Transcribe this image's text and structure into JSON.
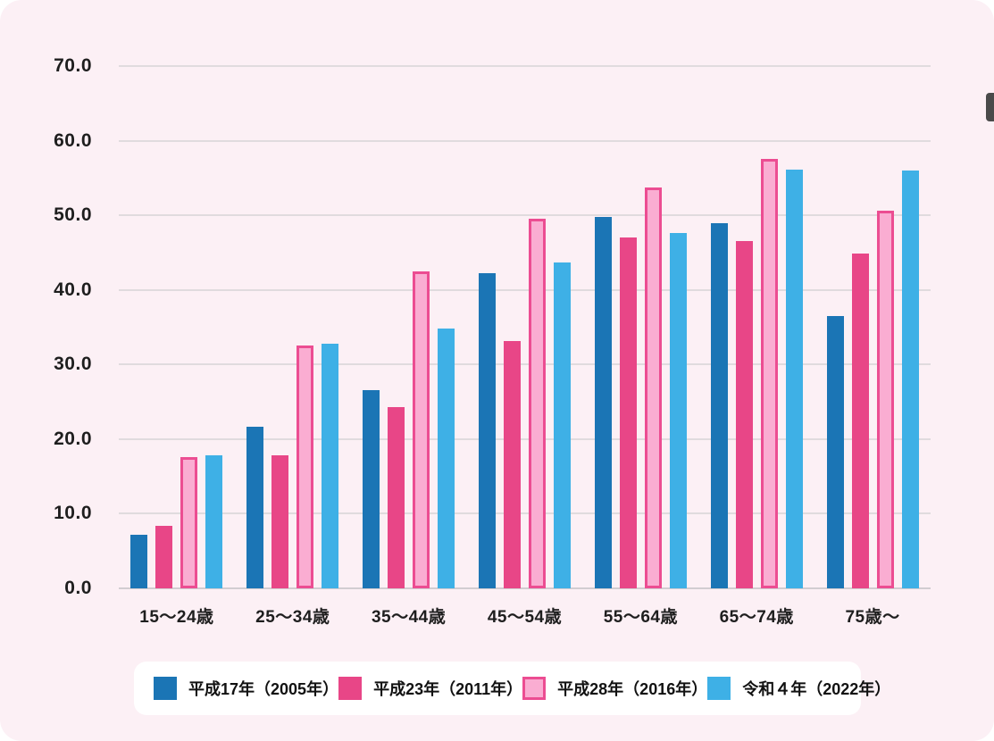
{
  "panel": {
    "background_color": "#fcf0f5",
    "gridline_color": "#e0dbde",
    "axisline_color": "#d2cdd1"
  },
  "chart_data": {
    "type": "bar",
    "title": "",
    "xlabel": "",
    "ylabel": "",
    "ylim": [
      0,
      70
    ],
    "ytick_step": 10,
    "ytick_labels": [
      "0.0",
      "10.0",
      "20.0",
      "30.0",
      "40.0",
      "50.0",
      "60.0",
      "70.0"
    ],
    "grid": true,
    "legend_position": "bottom",
    "categories": [
      "15〜24歳",
      "25〜34歳",
      "35〜44歳",
      "45〜54歳",
      "55〜64歳",
      "65〜74歳",
      "75歳〜"
    ],
    "series": [
      {
        "name": "平成17年（2005年）",
        "color": "#1b75b5",
        "border_color": null,
        "values": [
          7.2,
          21.7,
          26.6,
          42.2,
          49.8,
          48.9,
          36.5
        ]
      },
      {
        "name": "平成23年（2011年）",
        "color": "#e84687",
        "border_color": null,
        "values": [
          8.4,
          17.8,
          24.3,
          33.2,
          47.0,
          46.5,
          44.9
        ]
      },
      {
        "name": "平成28年（2016年）",
        "color": "#faadd2",
        "border_color": "#ec4d92",
        "values": [
          17.6,
          32.5,
          42.5,
          49.5,
          53.7,
          57.6,
          50.6
        ]
      },
      {
        "name": "令和４年（2022年）",
        "color": "#3eb0e6",
        "border_color": null,
        "values": [
          17.8,
          32.8,
          34.8,
          43.7,
          47.6,
          56.1,
          56.0
        ]
      }
    ]
  },
  "scrollbar": {
    "color": "#4a4a4a"
  }
}
